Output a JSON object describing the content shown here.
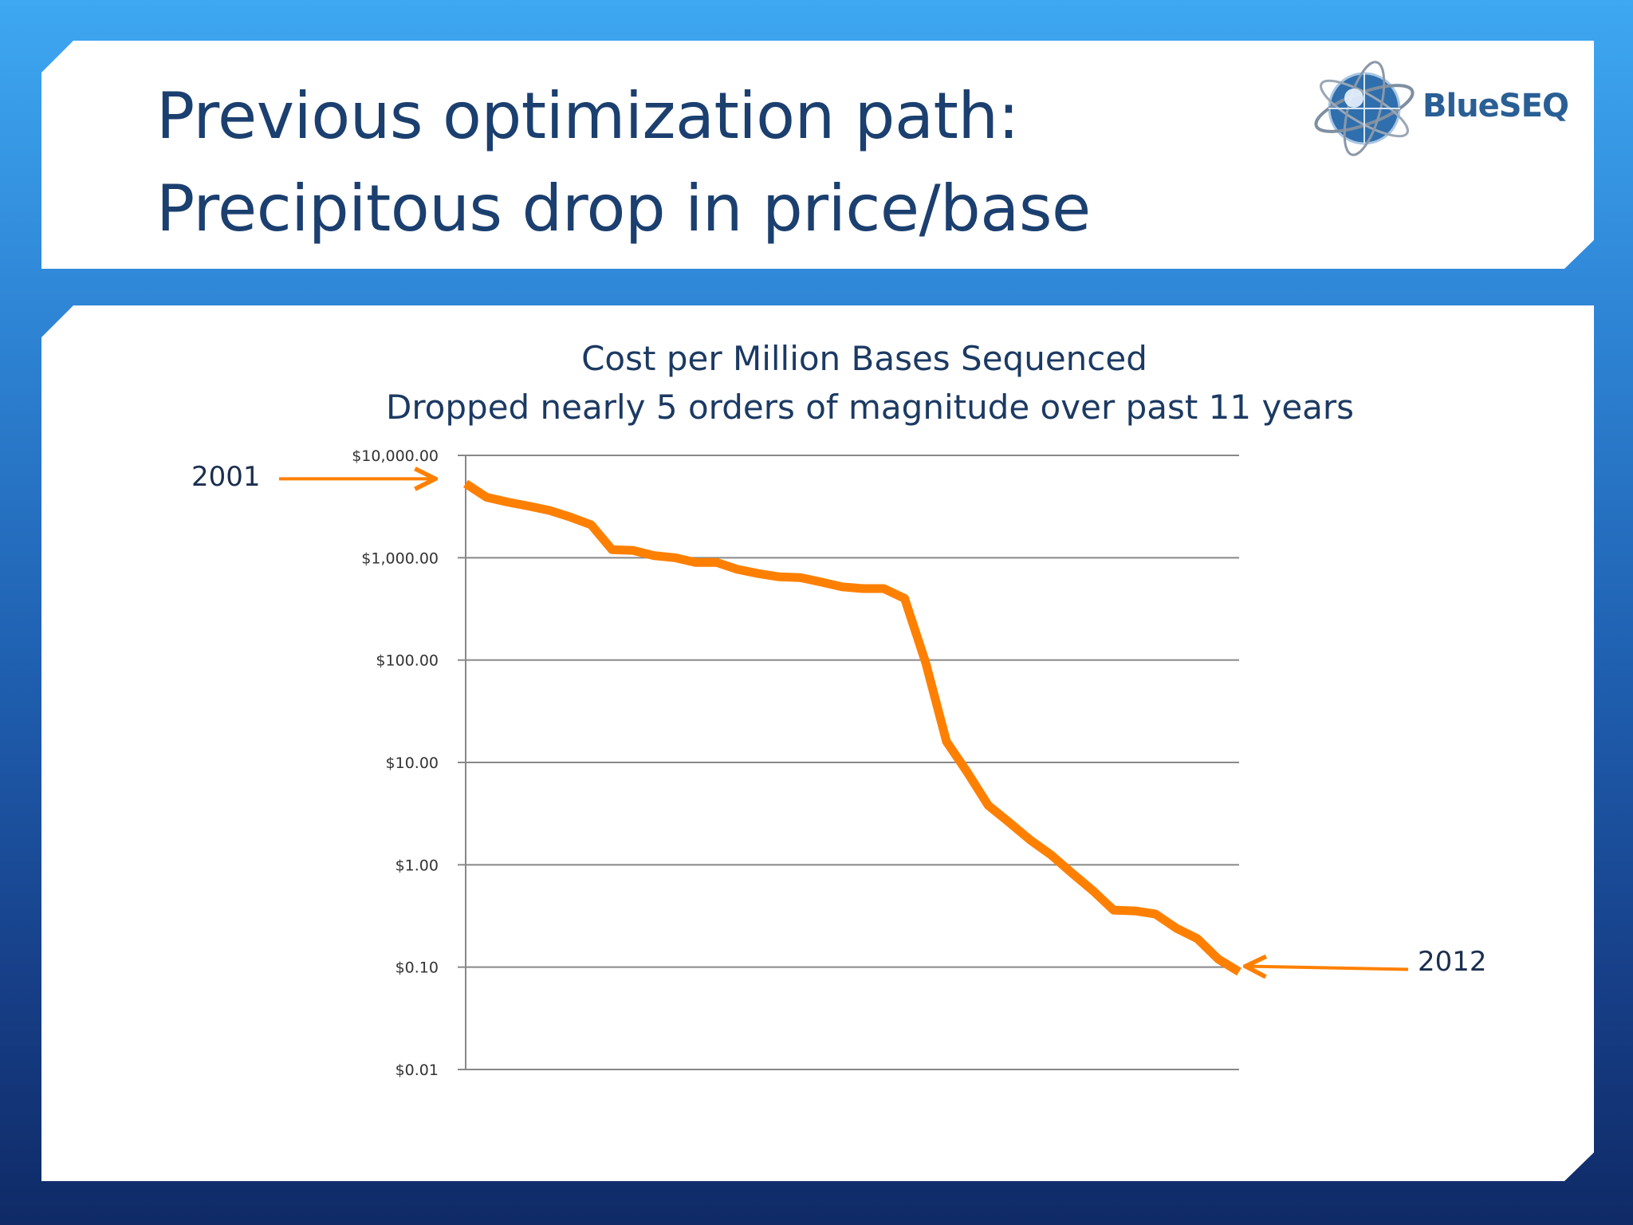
{
  "slide": {
    "title_line1": "Previous optimization path:",
    "title_line2": "Precipitous drop in price/base"
  },
  "logo": {
    "text": "BlueSEQ"
  },
  "colors": {
    "title": "#1b3f6f",
    "line": "#ff8000",
    "grid": "#888888",
    "logo_text": "#2a5f95"
  },
  "chart_data": {
    "type": "line",
    "title": "Cost per Million Bases Sequenced",
    "subtitle": "Dropped nearly 5 orders of magnitude over past 11 years",
    "xlabel": "",
    "ylabel": "",
    "yscale": "log",
    "ylim": [
      0.01,
      10000
    ],
    "grid": true,
    "yticks": [
      10000,
      1000,
      100,
      10,
      1,
      0.1,
      0.01
    ],
    "ytick_labels": [
      "$10,000.00",
      "$1,000.00",
      "$100.00",
      "$10.00",
      "$1.00",
      "$0.10",
      "$0.01"
    ],
    "series": [
      {
        "values": [
          5300,
          3900,
          3500,
          3200,
          2900,
          2500,
          2100,
          1200,
          1180,
          1050,
          1000,
          900,
          900,
          770,
          700,
          650,
          640,
          580,
          520,
          500,
          500,
          400,
          95,
          16,
          8,
          3.8,
          2.6,
          1.75,
          1.25,
          0.83,
          0.56,
          0.36,
          0.355,
          0.33,
          0.24,
          0.19,
          0.12,
          0.09
        ],
        "line_color": "#ff8000"
      }
    ],
    "annotations": [
      {
        "text": "2001",
        "points_to": "start"
      },
      {
        "text": "2012",
        "points_to": "end"
      }
    ]
  }
}
